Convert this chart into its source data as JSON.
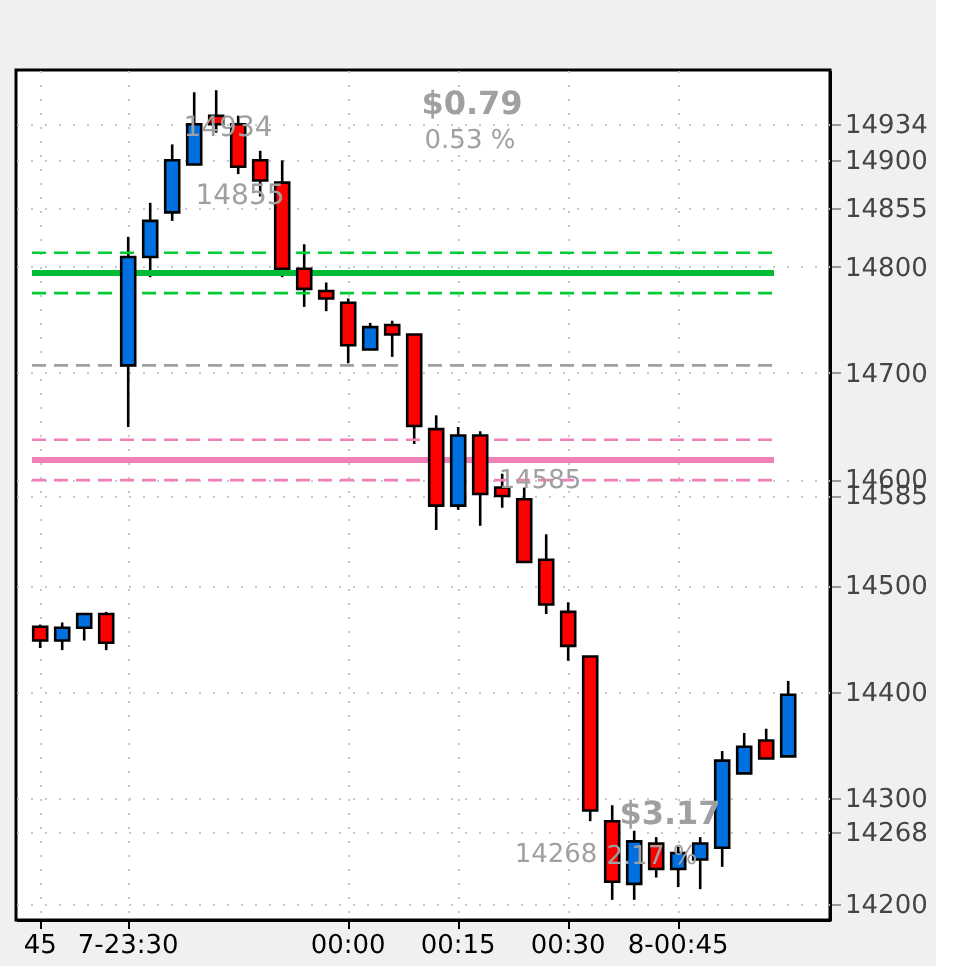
{
  "chart_data": {
    "type": "candlestick",
    "categories": [
      "45",
      null,
      null,
      null,
      "7-23:30",
      null,
      null,
      null,
      null,
      null,
      null,
      null,
      null,
      null,
      "00:00",
      null,
      null,
      null,
      null,
      "00:15",
      null,
      null,
      null,
      null,
      "00:30",
      null,
      null,
      null,
      null,
      "8-00:45",
      null,
      null,
      null,
      null,
      null
    ],
    "ohlc": [
      [
        14461,
        14463,
        14441,
        14448
      ],
      [
        14448,
        14465,
        14439,
        14460
      ],
      [
        14460,
        14473,
        14448,
        14473
      ],
      [
        14473,
        14475,
        14439,
        14446
      ],
      [
        14707,
        14828,
        14649,
        14809
      ],
      [
        14809,
        14860,
        14790,
        14843
      ],
      [
        14851,
        14915,
        14843,
        14900
      ],
      [
        14896,
        14964,
        14896,
        14934
      ],
      [
        14942,
        14966,
        14926,
        14934
      ],
      [
        14934,
        14942,
        14887,
        14894
      ],
      [
        14900,
        14909,
        14866,
        14881
      ],
      [
        14879,
        14900,
        14790,
        14798
      ],
      [
        14798,
        14821,
        14762,
        14779
      ],
      [
        14777,
        14785,
        14758,
        14770
      ],
      [
        14766,
        14770,
        14709,
        14726
      ],
      [
        14722,
        14747,
        14722,
        14743
      ],
      [
        14745,
        14749,
        14715,
        14736
      ],
      [
        14736,
        14736,
        14633,
        14650
      ],
      [
        14647,
        14660,
        14552,
        14575
      ],
      [
        14575,
        14649,
        14571,
        14641
      ],
      [
        14641,
        14645,
        14556,
        14586
      ],
      [
        14592,
        14605,
        14573,
        14584
      ],
      [
        14581,
        14592,
        14522,
        14522
      ],
      [
        14524,
        14548,
        14473,
        14482
      ],
      [
        14475,
        14484,
        14429,
        14443
      ],
      [
        14433,
        14433,
        14278,
        14288
      ],
      [
        14278,
        14293,
        14204,
        14221
      ],
      [
        14219,
        14269,
        14204,
        14259
      ],
      [
        14257,
        14263,
        14225,
        14233
      ],
      [
        14233,
        14254,
        14216,
        14248
      ],
      [
        14242,
        14263,
        14214,
        14257
      ],
      [
        14253,
        14344,
        14235,
        14335
      ],
      [
        14323,
        14361,
        14323,
        14348
      ],
      [
        14354,
        14365,
        14337,
        14337
      ],
      [
        14339,
        14410,
        14339,
        14397
      ]
    ],
    "colors": [
      "#ff0000",
      "#0070e0",
      "#0070e0",
      "#ff0000",
      "#0070e0",
      "#0070e0",
      "#0070e0",
      "#0070e0",
      "#ff0000",
      "#ff0000",
      "#ff0000",
      "#ff0000",
      "#ff0000",
      "#ff0000",
      "#ff0000",
      "#0070e0",
      "#ff0000",
      "#ff0000",
      "#ff0000",
      "#0070e0",
      "#ff0000",
      "#ff0000",
      "#ff0000",
      "#ff0000",
      "#ff0000",
      "#ff0000",
      "#ff0000",
      "#0070e0",
      "#ff0000",
      "#0070e0",
      "#0070e0",
      "#0070e0",
      "#0070e0",
      "#ff0000",
      "#0070e0"
    ],
    "ylim": [
      14185,
      14985
    ],
    "yticks": [
      14200,
      14268,
      14300,
      14400,
      14500,
      14585,
      14600,
      14700,
      14800,
      14855,
      14900,
      14934
    ],
    "ref_lines": [
      {
        "axis": "y",
        "value": 14813,
        "color": "#00cc33",
        "line_style": "dashed"
      },
      {
        "axis": "y",
        "value": 14794,
        "color": "#00bb33",
        "line_style": "solid"
      },
      {
        "axis": "y",
        "value": 14775,
        "color": "#00cc33",
        "line_style": "dashed"
      },
      {
        "axis": "y",
        "value": 14707,
        "color": "#a0a0a0",
        "line_style": "dashed"
      },
      {
        "axis": "y",
        "value": 14637,
        "color": "#f080b8",
        "line_style": "dashed"
      },
      {
        "axis": "y",
        "value": 14618,
        "color": "#f080b8",
        "line_style": "solid"
      },
      {
        "axis": "y",
        "value": 14599,
        "color": "#f080b8",
        "line_style": "dashed"
      }
    ],
    "annotations": [
      "$0.79",
      "0.53 %",
      "14934",
      "14855",
      "14585",
      "14268",
      "$3.17",
      "2.17 %"
    ],
    "grid": true
  }
}
